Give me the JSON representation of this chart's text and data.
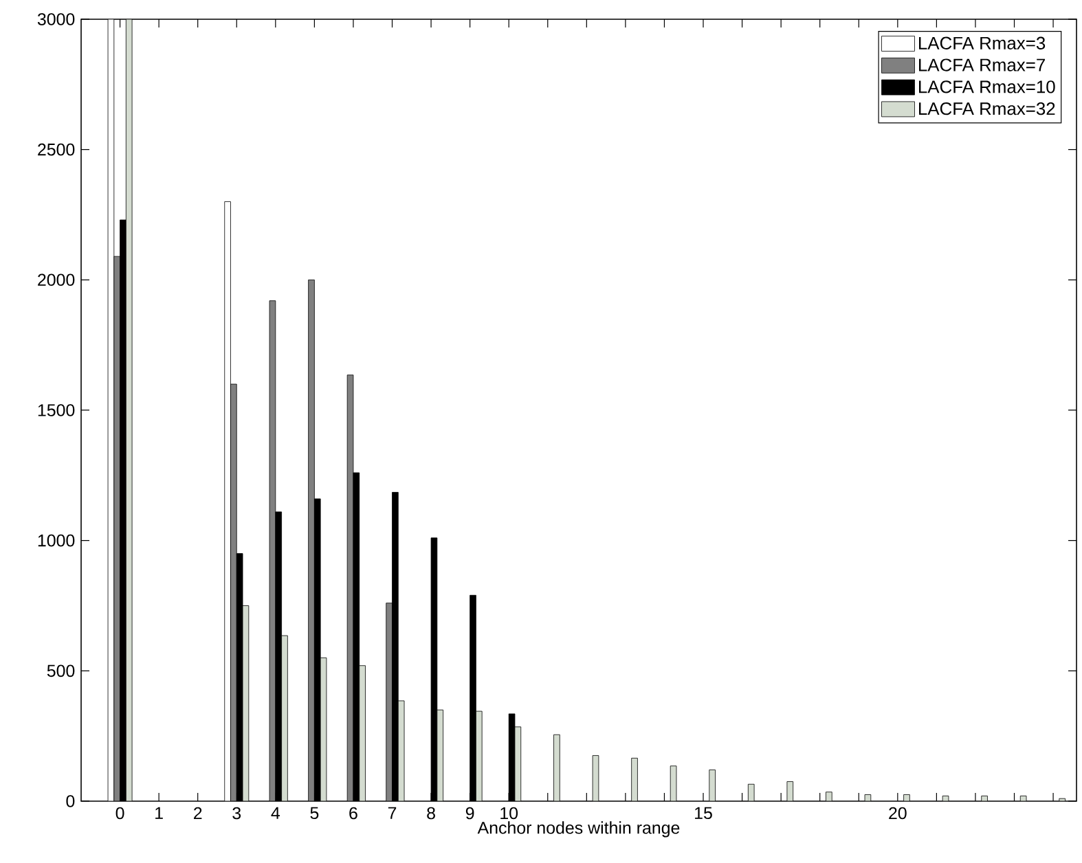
{
  "chart_data": {
    "type": "bar",
    "xlabel": "Anchor nodes within range",
    "x": [
      0,
      1,
      2,
      3,
      4,
      5,
      6,
      7,
      8,
      9,
      10,
      11,
      12,
      13,
      14,
      15,
      16,
      17,
      18,
      19,
      20,
      21,
      22,
      23,
      24
    ],
    "series": [
      {
        "name": "LACFA Rmax=3",
        "color": "#ffffff",
        "values": [
          3000,
          null,
          null,
          2300,
          null,
          null,
          null,
          null,
          null,
          null,
          null,
          null,
          null,
          null,
          null,
          null,
          null,
          null,
          null,
          null,
          null,
          null,
          null,
          null,
          null
        ]
      },
      {
        "name": "LACFA Rmax=7",
        "color": "#808080",
        "values": [
          2090,
          null,
          null,
          1600,
          1920,
          2000,
          1635,
          760,
          null,
          null,
          null,
          null,
          null,
          null,
          null,
          null,
          null,
          null,
          null,
          null,
          null,
          null,
          null,
          null,
          null
        ]
      },
      {
        "name": "LACFA Rmax=10",
        "color": "#000000",
        "values": [
          2230,
          null,
          null,
          950,
          1110,
          1160,
          1260,
          1185,
          1010,
          790,
          335,
          null,
          null,
          null,
          null,
          null,
          null,
          null,
          null,
          null,
          null,
          null,
          null,
          null,
          null
        ]
      },
      {
        "name": "LACFA Rmax=32",
        "color": "#d4dcd0",
        "values": [
          3000,
          null,
          null,
          750,
          635,
          550,
          520,
          385,
          350,
          345,
          285,
          255,
          175,
          165,
          135,
          120,
          65,
          75,
          35,
          25,
          25,
          20,
          20,
          20,
          10
        ]
      }
    ],
    "xlim": [
      -1,
      24.6
    ],
    "ylim": [
      0,
      3000
    ],
    "xticks": [
      0,
      1,
      2,
      3,
      4,
      5,
      6,
      7,
      8,
      9,
      10,
      {
        "value": 11,
        "label": null
      },
      {
        "value": 12,
        "label": null
      },
      {
        "value": 13,
        "label": null
      },
      {
        "value": 14,
        "label": null
      },
      15,
      {
        "value": 16,
        "label": null
      },
      {
        "value": 17,
        "label": null
      },
      {
        "value": 18,
        "label": null
      },
      {
        "value": 19,
        "label": null
      },
      20,
      {
        "value": 21,
        "label": null
      },
      {
        "value": 22,
        "label": null
      },
      {
        "value": 23,
        "label": null
      },
      {
        "value": 24,
        "label": null
      }
    ],
    "yticks": [
      0,
      500,
      1000,
      1500,
      2000,
      2500,
      3000
    ],
    "grid": false,
    "legend": "top right"
  }
}
